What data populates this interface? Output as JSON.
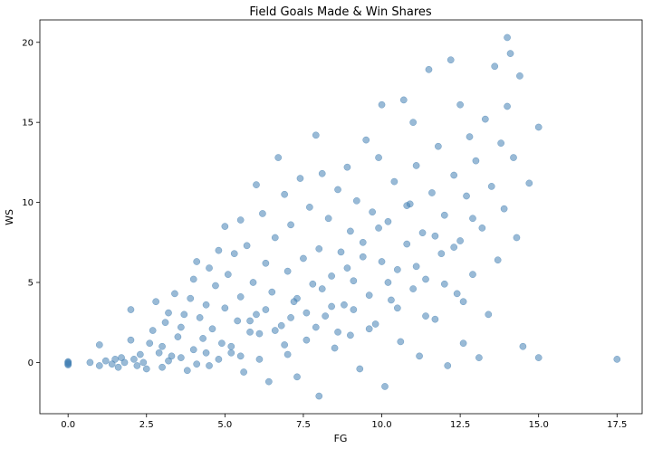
{
  "chart_data": {
    "type": "scatter",
    "title": "Field Goals Made & Win Shares",
    "xlabel": "FG",
    "ylabel": "WS",
    "xlim": [
      -0.9,
      18.3
    ],
    "ylim": [
      -3.2,
      21.4
    ],
    "xticks": [
      0.0,
      2.5,
      5.0,
      7.5,
      10.0,
      12.5,
      15.0,
      17.5
    ],
    "xtick_labels": [
      "0.0",
      "2.5",
      "5.0",
      "7.5",
      "10.0",
      "12.5",
      "15.0",
      "17.5"
    ],
    "yticks": [
      0,
      5,
      10,
      15,
      20
    ],
    "ytick_labels": [
      "0",
      "5",
      "10",
      "15",
      "20"
    ],
    "grid": false,
    "legend": false,
    "marker_color": "#4682b4",
    "marker_alpha": 0.55,
    "series": [
      {
        "points": [
          [
            0.0,
            0.05
          ],
          [
            0.0,
            -0.05
          ],
          [
            0.0,
            -0.15
          ],
          [
            0.0,
            0.0
          ],
          [
            0.0,
            -0.1
          ],
          [
            0.7,
            0.0
          ],
          [
            1.0,
            1.1
          ],
          [
            1.0,
            -0.2
          ],
          [
            1.2,
            0.1
          ],
          [
            1.4,
            -0.1
          ],
          [
            1.5,
            0.2
          ],
          [
            1.6,
            -0.3
          ],
          [
            1.7,
            0.3
          ],
          [
            1.8,
            0.0
          ],
          [
            2.0,
            3.3
          ],
          [
            2.0,
            1.4
          ],
          [
            2.1,
            0.2
          ],
          [
            2.2,
            -0.2
          ],
          [
            2.3,
            0.5
          ],
          [
            2.4,
            0.0
          ],
          [
            2.5,
            -0.4
          ],
          [
            2.6,
            1.2
          ],
          [
            2.7,
            2.0
          ],
          [
            2.8,
            3.8
          ],
          [
            2.9,
            0.6
          ],
          [
            3.0,
            1.0
          ],
          [
            3.0,
            -0.3
          ],
          [
            3.1,
            2.5
          ],
          [
            3.2,
            3.1
          ],
          [
            3.3,
            0.4
          ],
          [
            3.4,
            4.3
          ],
          [
            3.5,
            1.6
          ],
          [
            3.6,
            2.2
          ],
          [
            3.7,
            3.0
          ],
          [
            3.8,
            -0.5
          ],
          [
            3.9,
            4.0
          ],
          [
            4.0,
            5.2
          ],
          [
            4.0,
            0.8
          ],
          [
            4.1,
            6.3
          ],
          [
            4.2,
            2.8
          ],
          [
            4.3,
            1.5
          ],
          [
            4.4,
            3.6
          ],
          [
            4.5,
            5.9
          ],
          [
            4.5,
            -0.2
          ],
          [
            4.6,
            2.1
          ],
          [
            4.7,
            4.8
          ],
          [
            4.8,
            7.0
          ],
          [
            4.9,
            1.2
          ],
          [
            5.0,
            8.5
          ],
          [
            5.0,
            3.4
          ],
          [
            5.1,
            5.5
          ],
          [
            5.2,
            0.6
          ],
          [
            5.3,
            6.8
          ],
          [
            5.4,
            2.6
          ],
          [
            5.5,
            8.9
          ],
          [
            5.5,
            4.1
          ],
          [
            5.6,
            -0.6
          ],
          [
            5.7,
            7.3
          ],
          [
            5.8,
            1.9
          ],
          [
            5.9,
            5.0
          ],
          [
            6.0,
            11.1
          ],
          [
            6.0,
            3.0
          ],
          [
            6.1,
            0.2
          ],
          [
            6.2,
            9.3
          ],
          [
            6.3,
            6.2
          ],
          [
            6.4,
            -1.2
          ],
          [
            6.5,
            4.4
          ],
          [
            6.6,
            7.8
          ],
          [
            6.7,
            12.8
          ],
          [
            6.8,
            2.3
          ],
          [
            6.9,
            10.5
          ],
          [
            7.0,
            5.7
          ],
          [
            7.0,
            0.5
          ],
          [
            7.1,
            8.6
          ],
          [
            7.2,
            3.8
          ],
          [
            7.3,
            -0.9
          ],
          [
            7.4,
            11.5
          ],
          [
            7.5,
            6.5
          ],
          [
            7.6,
            1.4
          ],
          [
            7.7,
            9.7
          ],
          [
            7.8,
            4.9
          ],
          [
            7.9,
            14.2
          ],
          [
            8.0,
            7.1
          ],
          [
            8.0,
            -2.1
          ],
          [
            8.1,
            11.8
          ],
          [
            8.2,
            2.9
          ],
          [
            8.3,
            9.0
          ],
          [
            8.4,
            5.4
          ],
          [
            8.5,
            0.9
          ],
          [
            8.6,
            10.8
          ],
          [
            8.7,
            6.9
          ],
          [
            8.8,
            3.6
          ],
          [
            8.9,
            12.2
          ],
          [
            9.0,
            8.2
          ],
          [
            9.0,
            1.7
          ],
          [
            9.1,
            5.1
          ],
          [
            9.2,
            10.1
          ],
          [
            9.3,
            -0.4
          ],
          [
            9.4,
            7.5
          ],
          [
            9.5,
            13.9
          ],
          [
            9.6,
            4.2
          ],
          [
            9.7,
            9.4
          ],
          [
            9.8,
            2.4
          ],
          [
            9.9,
            12.8
          ],
          [
            10.0,
            6.3
          ],
          [
            10.0,
            16.1
          ],
          [
            10.1,
            -1.5
          ],
          [
            10.2,
            8.8
          ],
          [
            10.3,
            3.9
          ],
          [
            10.4,
            11.3
          ],
          [
            10.5,
            5.8
          ],
          [
            10.6,
            1.3
          ],
          [
            10.7,
            16.4
          ],
          [
            10.8,
            7.4
          ],
          [
            10.9,
            9.9
          ],
          [
            11.0,
            4.6
          ],
          [
            11.0,
            15.0
          ],
          [
            11.1,
            12.3
          ],
          [
            11.2,
            0.4
          ],
          [
            11.3,
            8.1
          ],
          [
            11.4,
            5.2
          ],
          [
            11.5,
            18.3
          ],
          [
            11.6,
            10.6
          ],
          [
            11.7,
            2.7
          ],
          [
            11.8,
            13.5
          ],
          [
            11.9,
            6.8
          ],
          [
            12.0,
            9.2
          ],
          [
            12.1,
            -0.2
          ],
          [
            12.2,
            18.9
          ],
          [
            12.3,
            11.7
          ],
          [
            12.4,
            4.3
          ],
          [
            12.5,
            16.1
          ],
          [
            12.5,
            7.6
          ],
          [
            12.6,
            1.2
          ],
          [
            12.7,
            10.4
          ],
          [
            12.8,
            14.1
          ],
          [
            12.9,
            5.5
          ],
          [
            13.0,
            12.6
          ],
          [
            13.1,
            0.3
          ],
          [
            13.2,
            8.4
          ],
          [
            13.3,
            15.2
          ],
          [
            13.4,
            3.0
          ],
          [
            13.5,
            11.0
          ],
          [
            13.6,
            18.5
          ],
          [
            13.7,
            6.4
          ],
          [
            13.8,
            13.7
          ],
          [
            13.9,
            9.6
          ],
          [
            14.0,
            20.3
          ],
          [
            14.0,
            16.0
          ],
          [
            14.1,
            19.3
          ],
          [
            14.2,
            12.8
          ],
          [
            14.3,
            7.8
          ],
          [
            14.4,
            17.9
          ],
          [
            14.5,
            1.0
          ],
          [
            14.7,
            11.2
          ],
          [
            15.0,
            0.3
          ],
          [
            15.0,
            14.7
          ],
          [
            17.5,
            0.2
          ],
          [
            3.2,
            0.1
          ],
          [
            3.6,
            0.3
          ],
          [
            4.1,
            -0.1
          ],
          [
            4.4,
            0.6
          ],
          [
            4.8,
            0.2
          ],
          [
            5.2,
            1.0
          ],
          [
            5.5,
            0.4
          ],
          [
            5.8,
            2.6
          ],
          [
            6.1,
            1.8
          ],
          [
            6.3,
            3.3
          ],
          [
            6.6,
            2.0
          ],
          [
            6.9,
            1.1
          ],
          [
            7.1,
            2.8
          ],
          [
            7.3,
            4.0
          ],
          [
            7.6,
            3.1
          ],
          [
            7.9,
            2.2
          ],
          [
            8.1,
            4.6
          ],
          [
            8.4,
            3.5
          ],
          [
            8.6,
            1.9
          ],
          [
            8.9,
            5.9
          ],
          [
            9.1,
            3.3
          ],
          [
            9.4,
            6.6
          ],
          [
            9.6,
            2.1
          ],
          [
            9.9,
            8.4
          ],
          [
            10.2,
            5.0
          ],
          [
            10.5,
            3.4
          ],
          [
            10.8,
            9.8
          ],
          [
            11.1,
            6.0
          ],
          [
            11.4,
            2.9
          ],
          [
            11.7,
            7.9
          ],
          [
            12.0,
            4.9
          ],
          [
            12.3,
            7.2
          ],
          [
            12.6,
            3.8
          ],
          [
            12.9,
            9.0
          ]
        ]
      }
    ]
  }
}
